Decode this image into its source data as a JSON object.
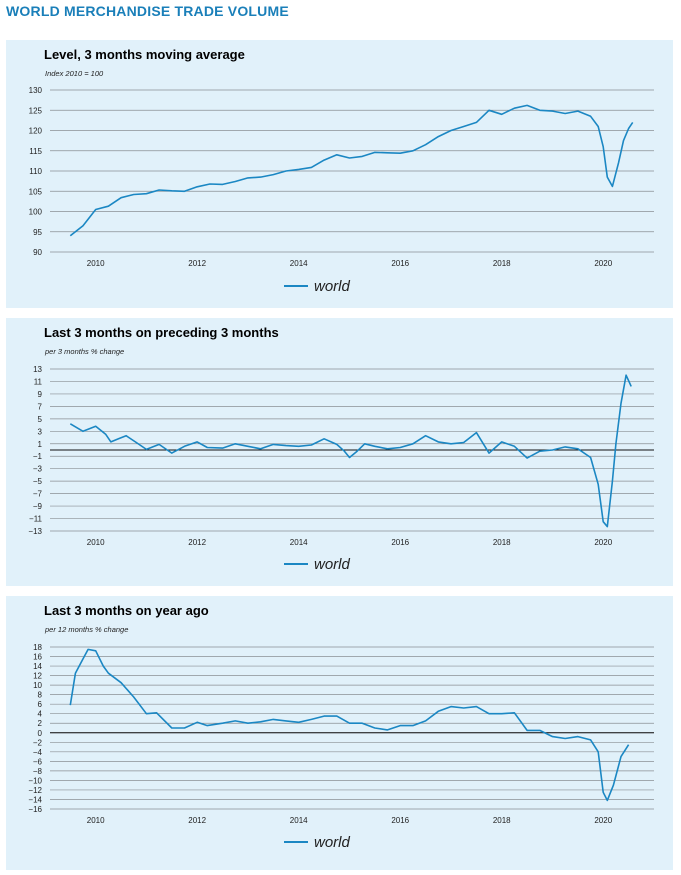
{
  "page": {
    "title": "WORLD MERCHANDISE TRADE VOLUME"
  },
  "colors": {
    "line": "#1b87c3",
    "background": "#e1f1fa",
    "title": "#1a7fb9"
  },
  "chart_data": [
    {
      "type": "line",
      "title": "Level, 3 months moving average",
      "subtitle": "Index 2010 = 100",
      "ylim": [
        90,
        130
      ],
      "yticks": [
        90,
        95,
        100,
        105,
        110,
        115,
        120,
        125,
        130
      ],
      "xlim": [
        2009.1,
        2021.0
      ],
      "xticks": [
        2010,
        2012,
        2014,
        2016,
        2018,
        2020
      ],
      "zero_line": null,
      "grid": true,
      "legend": "bottom-center",
      "series": [
        {
          "name": "world",
          "points": [
            [
              2009.5,
              94.0
            ],
            [
              2009.75,
              96.5
            ],
            [
              2010.0,
              100.5
            ],
            [
              2010.25,
              101.3
            ],
            [
              2010.5,
              103.4
            ],
            [
              2010.75,
              104.2
            ],
            [
              2011.0,
              104.4
            ],
            [
              2011.25,
              105.3
            ],
            [
              2011.5,
              105.1
            ],
            [
              2011.75,
              105.0
            ],
            [
              2012.0,
              106.1
            ],
            [
              2012.25,
              106.8
            ],
            [
              2012.5,
              106.7
            ],
            [
              2012.75,
              107.4
            ],
            [
              2013.0,
              108.3
            ],
            [
              2013.25,
              108.5
            ],
            [
              2013.5,
              109.1
            ],
            [
              2013.75,
              110.0
            ],
            [
              2014.0,
              110.4
            ],
            [
              2014.25,
              110.9
            ],
            [
              2014.5,
              112.7
            ],
            [
              2014.75,
              114.0
            ],
            [
              2015.0,
              113.2
            ],
            [
              2015.25,
              113.6
            ],
            [
              2015.5,
              114.6
            ],
            [
              2015.75,
              114.5
            ],
            [
              2016.0,
              114.4
            ],
            [
              2016.25,
              115.0
            ],
            [
              2016.5,
              116.5
            ],
            [
              2016.75,
              118.5
            ],
            [
              2017.0,
              120.0
            ],
            [
              2017.25,
              121.0
            ],
            [
              2017.5,
              122.0
            ],
            [
              2017.75,
              125.0
            ],
            [
              2018.0,
              124.0
            ],
            [
              2018.25,
              125.5
            ],
            [
              2018.5,
              126.2
            ],
            [
              2018.75,
              125.0
            ],
            [
              2019.0,
              124.8
            ],
            [
              2019.25,
              124.2
            ],
            [
              2019.5,
              124.8
            ],
            [
              2019.75,
              123.5
            ],
            [
              2019.9,
              121.0
            ],
            [
              2020.0,
              116.0
            ],
            [
              2020.08,
              108.5
            ],
            [
              2020.18,
              106.2
            ],
            [
              2020.3,
              112.0
            ],
            [
              2020.4,
              117.5
            ],
            [
              2020.5,
              120.5
            ],
            [
              2020.58,
              122.0
            ]
          ]
        }
      ]
    },
    {
      "type": "line",
      "title": "Last 3 months on preceding 3 months",
      "subtitle": "per 3 months % change",
      "ylim": [
        -13,
        13
      ],
      "yticks": [
        -13,
        -11,
        -9,
        -7,
        -5,
        -3,
        -1,
        1,
        3,
        5,
        7,
        9,
        11,
        13
      ],
      "xlim": [
        2009.1,
        2021.0
      ],
      "xticks": [
        2010,
        2012,
        2014,
        2016,
        2018,
        2020
      ],
      "zero_line": 0,
      "grid": true,
      "legend": "bottom-center",
      "series": [
        {
          "name": "world",
          "points": [
            [
              2009.5,
              4.2
            ],
            [
              2009.75,
              3.0
            ],
            [
              2010.0,
              3.8
            ],
            [
              2010.2,
              2.5
            ],
            [
              2010.3,
              1.3
            ],
            [
              2010.45,
              1.8
            ],
            [
              2010.6,
              2.3
            ],
            [
              2010.8,
              1.2
            ],
            [
              2011.0,
              0.1
            ],
            [
              2011.25,
              0.9
            ],
            [
              2011.5,
              -0.5
            ],
            [
              2011.75,
              0.6
            ],
            [
              2012.0,
              1.3
            ],
            [
              2012.2,
              0.4
            ],
            [
              2012.5,
              0.3
            ],
            [
              2012.75,
              1.0
            ],
            [
              2013.0,
              0.6
            ],
            [
              2013.25,
              0.2
            ],
            [
              2013.5,
              0.9
            ],
            [
              2013.75,
              0.7
            ],
            [
              2014.0,
              0.6
            ],
            [
              2014.25,
              0.8
            ],
            [
              2014.5,
              1.8
            ],
            [
              2014.75,
              0.9
            ],
            [
              2014.9,
              -0.2
            ],
            [
              2015.0,
              -1.2
            ],
            [
              2015.15,
              -0.2
            ],
            [
              2015.3,
              1.0
            ],
            [
              2015.5,
              0.6
            ],
            [
              2015.75,
              0.2
            ],
            [
              2016.0,
              0.4
            ],
            [
              2016.25,
              1.0
            ],
            [
              2016.5,
              2.3
            ],
            [
              2016.75,
              1.3
            ],
            [
              2017.0,
              1.0
            ],
            [
              2017.25,
              1.2
            ],
            [
              2017.5,
              2.8
            ],
            [
              2017.75,
              -0.5
            ],
            [
              2018.0,
              1.3
            ],
            [
              2018.25,
              0.6
            ],
            [
              2018.5,
              -1.3
            ],
            [
              2018.75,
              -0.2
            ],
            [
              2019.0,
              0.0
            ],
            [
              2019.25,
              0.5
            ],
            [
              2019.5,
              0.2
            ],
            [
              2019.75,
              -1.2
            ],
            [
              2019.9,
              -5.5
            ],
            [
              2020.0,
              -11.5
            ],
            [
              2020.08,
              -12.3
            ],
            [
              2020.18,
              -5.0
            ],
            [
              2020.25,
              1.0
            ],
            [
              2020.35,
              7.5
            ],
            [
              2020.45,
              12.0
            ],
            [
              2020.55,
              10.2
            ]
          ]
        }
      ]
    },
    {
      "type": "line",
      "title": "Last 3 months on year ago",
      "subtitle": "per 12 months % change",
      "ylim": [
        -16,
        18
      ],
      "yticks": [
        -16,
        -14,
        -12,
        -10,
        -8,
        -6,
        -4,
        -2,
        0,
        2,
        4,
        6,
        8,
        10,
        12,
        14,
        16,
        18
      ],
      "xlim": [
        2009.1,
        2021.0
      ],
      "xticks": [
        2010,
        2012,
        2014,
        2016,
        2018,
        2020
      ],
      "zero_line": 0,
      "grid": true,
      "legend": "bottom-center",
      "series": [
        {
          "name": "world",
          "points": [
            [
              2009.5,
              5.8
            ],
            [
              2009.6,
              12.5
            ],
            [
              2009.75,
              15.5
            ],
            [
              2009.85,
              17.5
            ],
            [
              2010.0,
              17.2
            ],
            [
              2010.15,
              14.0
            ],
            [
              2010.25,
              12.5
            ],
            [
              2010.5,
              10.5
            ],
            [
              2010.75,
              7.5
            ],
            [
              2011.0,
              4.0
            ],
            [
              2011.2,
              4.2
            ],
            [
              2011.5,
              1.0
            ],
            [
              2011.75,
              1.0
            ],
            [
              2012.0,
              2.2
            ],
            [
              2012.2,
              1.5
            ],
            [
              2012.5,
              2.0
            ],
            [
              2012.75,
              2.5
            ],
            [
              2013.0,
              2.0
            ],
            [
              2013.25,
              2.3
            ],
            [
              2013.5,
              2.8
            ],
            [
              2013.75,
              2.5
            ],
            [
              2014.0,
              2.2
            ],
            [
              2014.25,
              2.8
            ],
            [
              2014.5,
              3.5
            ],
            [
              2014.75,
              3.5
            ],
            [
              2015.0,
              2.0
            ],
            [
              2015.25,
              2.0
            ],
            [
              2015.5,
              1.0
            ],
            [
              2015.75,
              0.6
            ],
            [
              2016.0,
              1.5
            ],
            [
              2016.25,
              1.5
            ],
            [
              2016.5,
              2.5
            ],
            [
              2016.75,
              4.5
            ],
            [
              2017.0,
              5.5
            ],
            [
              2017.25,
              5.2
            ],
            [
              2017.5,
              5.5
            ],
            [
              2017.75,
              4.0
            ],
            [
              2018.0,
              4.0
            ],
            [
              2018.25,
              4.2
            ],
            [
              2018.5,
              0.5
            ],
            [
              2018.75,
              0.5
            ],
            [
              2019.0,
              -0.8
            ],
            [
              2019.25,
              -1.2
            ],
            [
              2019.5,
              -0.8
            ],
            [
              2019.75,
              -1.5
            ],
            [
              2019.9,
              -4.0
            ],
            [
              2020.0,
              -12.5
            ],
            [
              2020.08,
              -14.2
            ],
            [
              2020.2,
              -11.0
            ],
            [
              2020.35,
              -5.0
            ],
            [
              2020.5,
              -2.5
            ]
          ]
        }
      ]
    }
  ]
}
